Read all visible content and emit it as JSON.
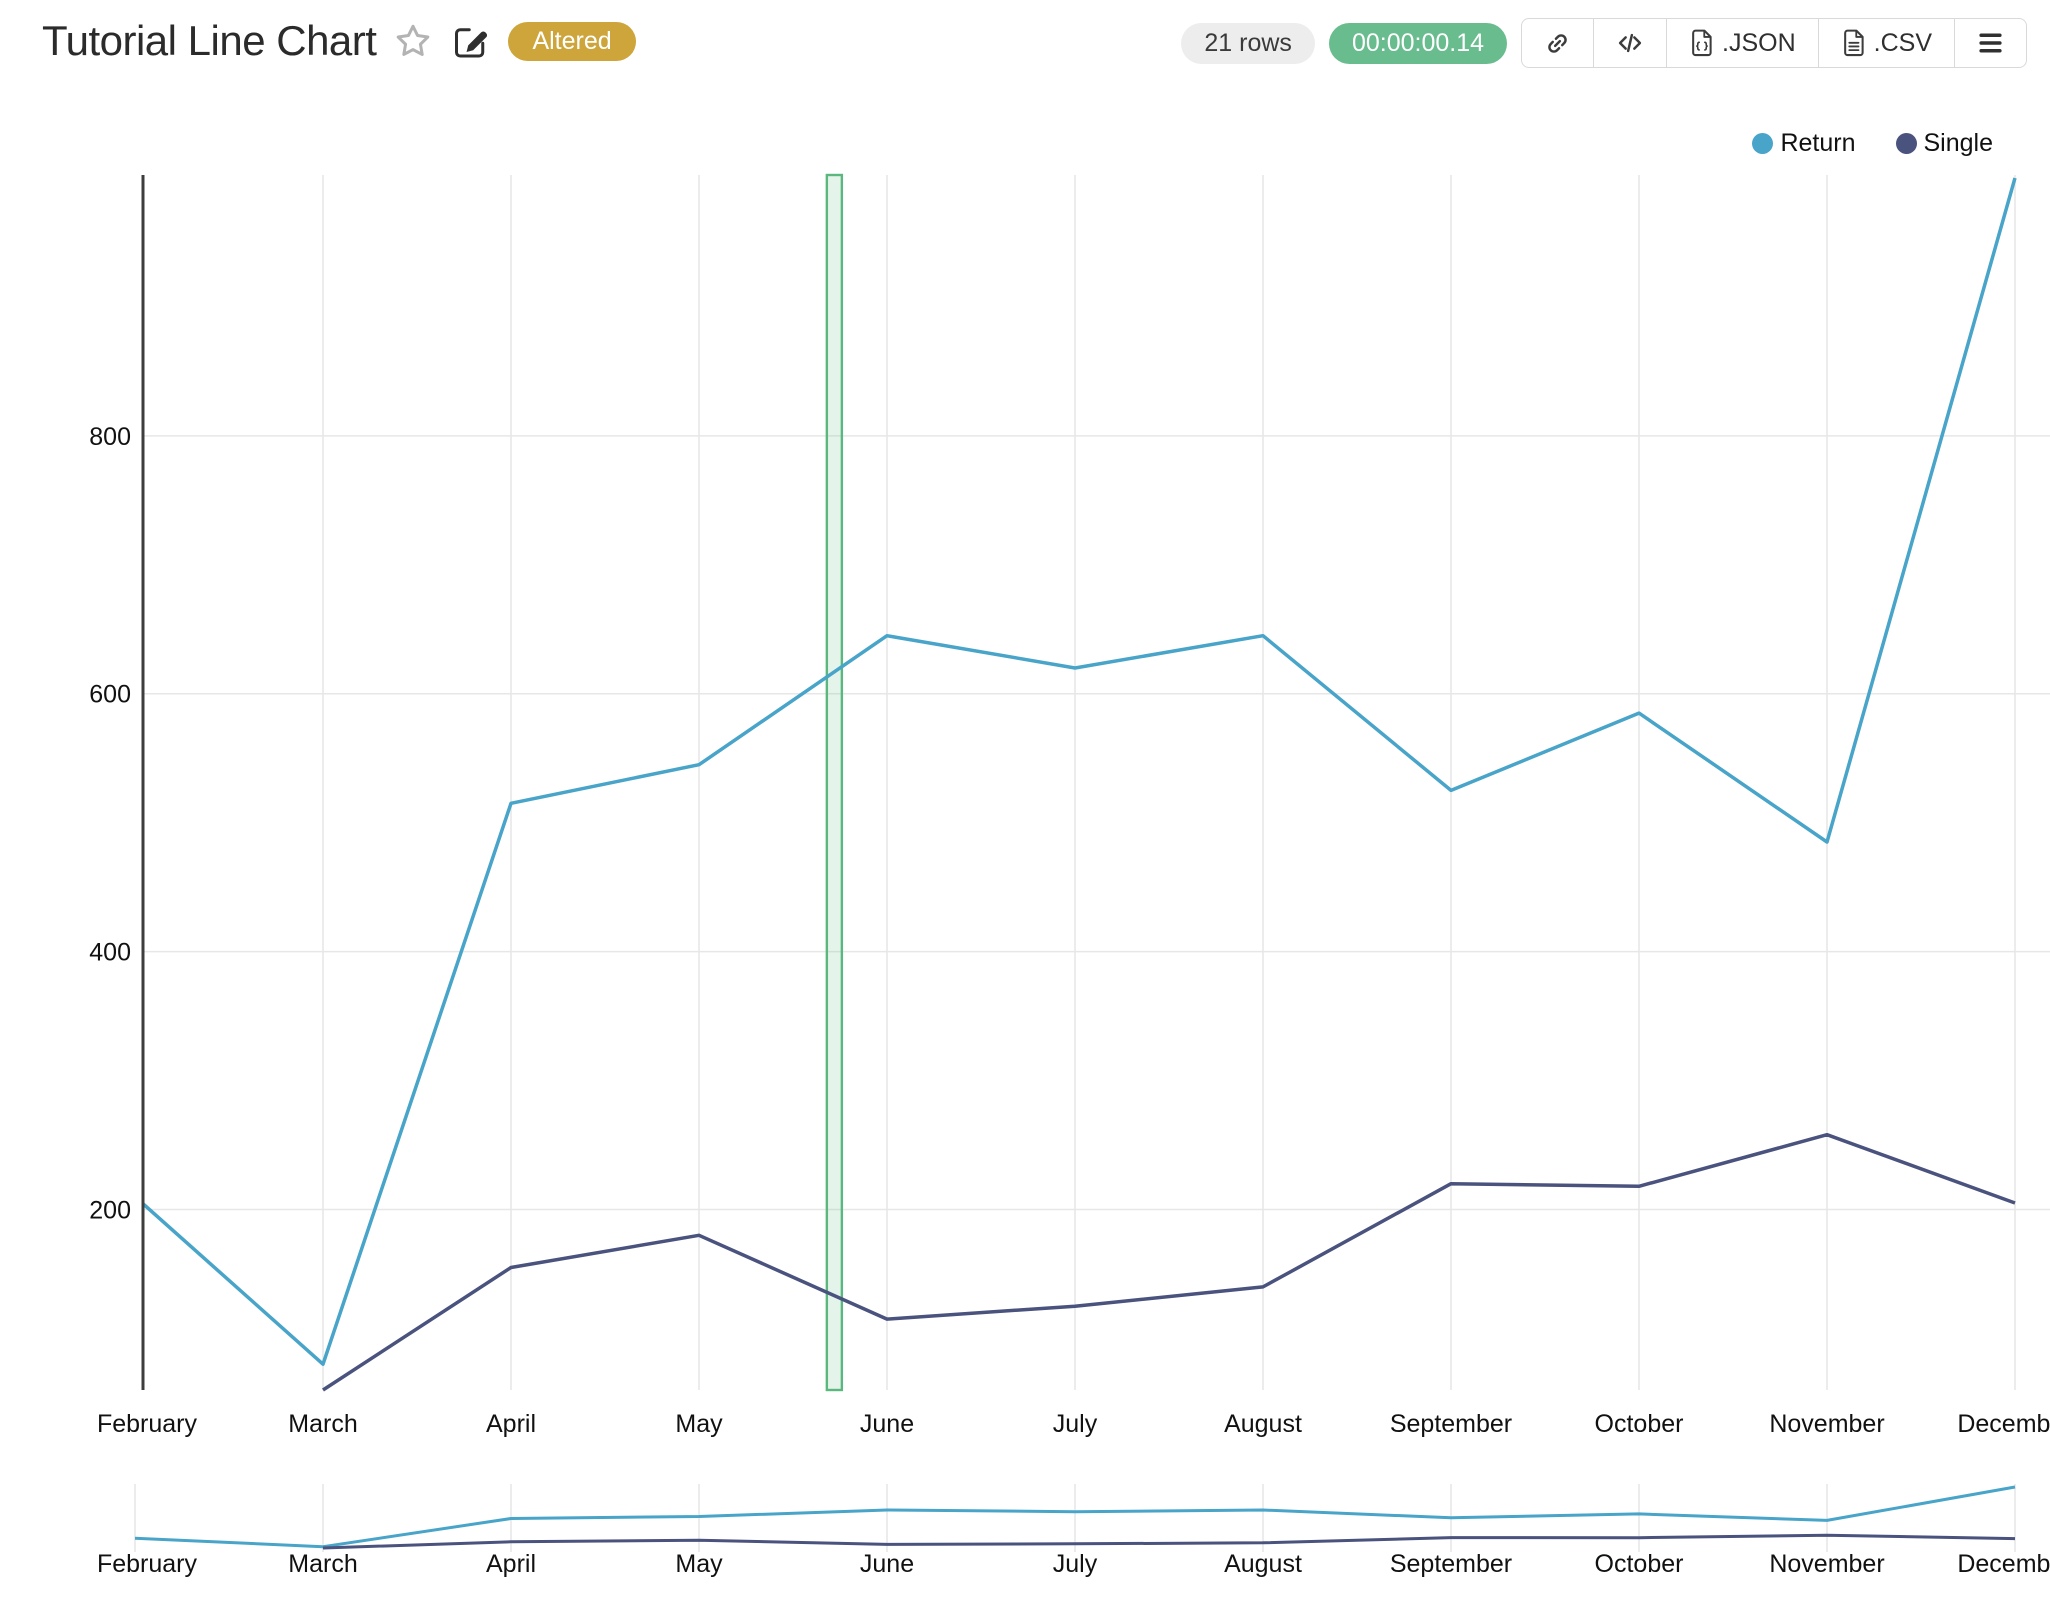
{
  "header": {
    "title": "Tutorial Line Chart",
    "altered_badge": "Altered",
    "rows_badge": "21 rows",
    "timer_badge": "00:00:00.14",
    "export_buttons": {
      "json": ".JSON",
      "csv": ".CSV"
    },
    "icons": {
      "favorite": "star-outline",
      "edit": "pencil-square",
      "link": "chain-link",
      "embed": "</>",
      "json_file": "file-braces",
      "csv_file": "file-lines",
      "menu": "hamburger"
    }
  },
  "colors": {
    "accent_blue": "#48a4c8",
    "accent_navy": "#4a527e",
    "timer_green": "#69bc8d",
    "altered_gold": "#cda53b",
    "band_green": "#5ab87e",
    "grid": "#e7e7e7",
    "axis": "#3d3d3d",
    "text": "#111111"
  },
  "legend": [
    {
      "label": "Return",
      "color": "#48a4c8"
    },
    {
      "label": "Single",
      "color": "#4a527e"
    }
  ],
  "chart_data": {
    "type": "line",
    "categories": [
      "February",
      "March",
      "April",
      "May",
      "June",
      "July",
      "August",
      "September",
      "October",
      "November",
      "December"
    ],
    "series": [
      {
        "name": "Return",
        "color": "#48a4c8",
        "values": [
          210,
          80,
          515,
          545,
          645,
          620,
          645,
          525,
          585,
          485,
          1000
        ]
      },
      {
        "name": "Single",
        "color": "#4a527e",
        "values": [
          null,
          60,
          155,
          180,
          115,
          125,
          140,
          220,
          218,
          258,
          205
        ]
      }
    ],
    "ylim": [
      60,
      1000
    ],
    "yticks": [
      200,
      400,
      600,
      800
    ],
    "grid": true,
    "legend_position": "top-right",
    "highlight_band": {
      "between": [
        "May",
        "June"
      ],
      "position_fraction": 0.72
    },
    "minimap": {
      "show": true,
      "series_repeated": true
    }
  }
}
